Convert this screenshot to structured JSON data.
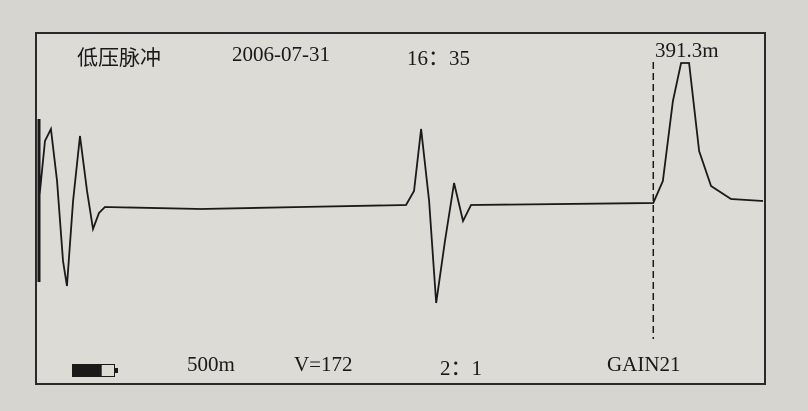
{
  "header": {
    "mode": "低压脉冲",
    "date": "2006-07-31",
    "time": "16：35",
    "cursor_distance": "391.3m"
  },
  "footer": {
    "range": "500m",
    "velocity": "V=172",
    "ratio": "2：1",
    "gain": "GAIN21",
    "battery_icon": "battery-icon",
    "battery_level": 0.7
  },
  "colors": {
    "background": "#dcdbd6",
    "trace": "#1a1a1a"
  },
  "chart_data": {
    "type": "line",
    "title": "",
    "xlabel": "",
    "ylabel": "",
    "x_unit": "m",
    "cursor_x": 391.3,
    "xlim": [
      0,
      461
    ],
    "ylim": [
      -120,
      150
    ],
    "grid": false,
    "series": [
      {
        "x": [
          0,
          3.8,
          7.6,
          11.5,
          15.3,
          17.8,
          21.7,
          26.1,
          30.6,
          34.4,
          38.2,
          42.0,
          103.2,
          166.9,
          233.8,
          238.9,
          243.4,
          248.5,
          253.0,
          258.6,
          264.4,
          270.1,
          275.2,
          391.3,
          397.4,
          403.8,
          409.0,
          414.1,
          420.5,
          428.1,
          440.8,
          461.2
        ],
        "y": [
          8,
          68,
          80,
          28,
          -52,
          -77,
          8,
          73,
          18,
          -20,
          -4,
          2,
          0,
          2,
          4,
          18,
          80,
          8,
          -94,
          -32,
          26,
          -12,
          4,
          6,
          28,
          108,
          146,
          146,
          58,
          23,
          10,
          8
        ]
      }
    ]
  }
}
